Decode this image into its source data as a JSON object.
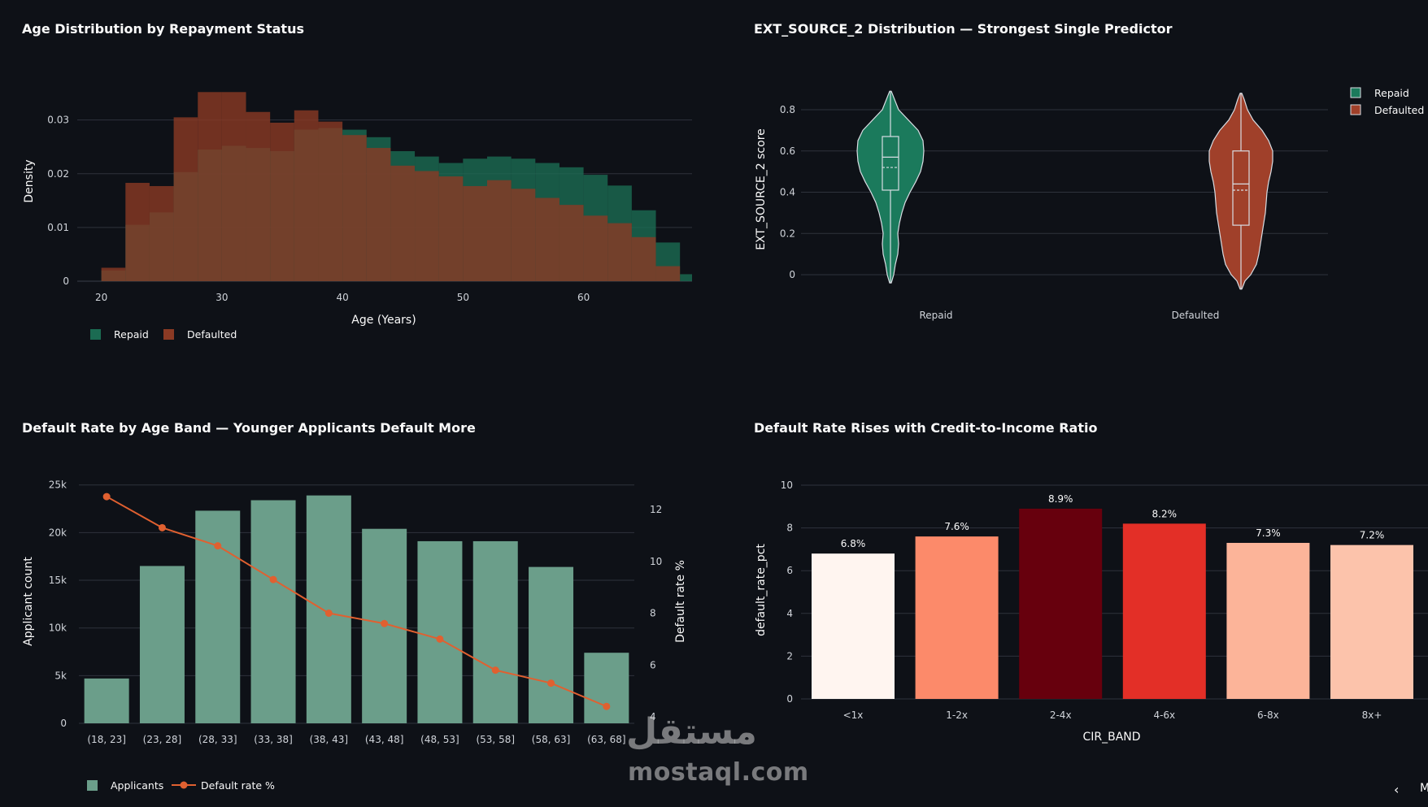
{
  "chart_data": [
    {
      "type": "histogram",
      "title": "Age Distribution by Repayment Status",
      "xlabel": "Age (Years)",
      "ylabel": "Density",
      "xlim": [
        18,
        69
      ],
      "ylim": [
        0,
        0.036
      ],
      "x_ticks": [
        20,
        30,
        40,
        50,
        60
      ],
      "x_tick_labels": [
        "20",
        "30",
        "40",
        "50",
        "60"
      ],
      "y_ticks": [
        0,
        0.01,
        0.02,
        0.03
      ],
      "y_tick_labels": [
        "0",
        "0.01",
        "0.02",
        "0.03"
      ],
      "legend_placement": "bottom-left",
      "bin_edges": [
        20,
        22,
        24,
        26,
        28,
        30,
        32,
        34,
        36,
        38,
        40,
        42,
        44,
        46,
        48,
        50,
        52,
        54,
        56,
        58,
        60,
        62,
        64,
        66,
        68,
        70
      ],
      "series": [
        {
          "name": "Repaid",
          "color": "#1b6b52",
          "values": [
            0.002,
            0.0105,
            0.0128,
            0.0203,
            0.0245,
            0.0252,
            0.0248,
            0.0242,
            0.0282,
            0.0285,
            0.0282,
            0.0268,
            0.0242,
            0.0232,
            0.022,
            0.0228,
            0.0232,
            0.0228,
            0.022,
            0.0212,
            0.0198,
            0.0178,
            0.0132,
            0.0072,
            0.0013
          ]
        },
        {
          "name": "Defaulted",
          "color": "#8b3a24",
          "values": [
            0.0025,
            0.0183,
            0.0177,
            0.0305,
            0.0352,
            0.0352,
            0.0315,
            0.0295,
            0.0318,
            0.0297,
            0.0272,
            0.0248,
            0.0215,
            0.0205,
            0.0195,
            0.0177,
            0.0188,
            0.0172,
            0.0155,
            0.0142,
            0.0122,
            0.0108,
            0.0082,
            0.0028,
            0.0
          ]
        }
      ]
    },
    {
      "type": "violin",
      "title": "EXT_SOURCE_2 Distribution — Strongest Single Predictor",
      "xlabel": "",
      "ylabel": "EXT_SOURCE_2 score",
      "ylim": [
        -0.08,
        0.92
      ],
      "y_ticks": [
        0,
        0.2,
        0.4,
        0.6,
        0.8
      ],
      "y_tick_labels": [
        "0",
        "0.2",
        "0.4",
        "0.6",
        "0.8"
      ],
      "legend_placement": "top-right",
      "categories": [
        "Repaid",
        "Defaulted"
      ],
      "series": [
        {
          "name": "Repaid",
          "color": "#1b7a5c",
          "min": -0.04,
          "q1": 0.41,
          "median": 0.57,
          "mean": 0.52,
          "q3": 0.67,
          "max": 0.89
        },
        {
          "name": "Defaulted",
          "color": "#a0402a",
          "min": -0.07,
          "q1": 0.24,
          "median": 0.44,
          "mean": 0.41,
          "q3": 0.6,
          "max": 0.88
        }
      ]
    },
    {
      "type": "bar",
      "title": "Default Rate by Age Band — Younger Applicants Default More",
      "ylabel": "Applicant count",
      "y2label": "Default rate %",
      "ylim": [
        0,
        26000
      ],
      "y2lim": [
        4,
        13.4
      ],
      "y_ticks": [
        0,
        5000,
        10000,
        15000,
        20000,
        25000
      ],
      "y_tick_labels": [
        "0",
        "5k",
        "10k",
        "15k",
        "20k",
        "25k"
      ],
      "y2_ticks": [
        4,
        6,
        8,
        10,
        12
      ],
      "y2_tick_labels": [
        "4",
        "6",
        "8",
        "10",
        "12"
      ],
      "legend_placement": "bottom-left",
      "categories": [
        "(18, 23]",
        "(23, 28]",
        "(28, 33]",
        "(33, 38]",
        "(38, 43]",
        "(43, 48]",
        "(48, 53]",
        "(53, 58]",
        "(58, 63]",
        "(63, 68]"
      ],
      "series": [
        {
          "name": "Applicants",
          "type": "bar",
          "color": "#6b9e8a",
          "values": [
            4700,
            16500,
            22300,
            23400,
            23900,
            20400,
            19100,
            19100,
            16400,
            7400
          ]
        },
        {
          "name": "Default rate %",
          "type": "line",
          "color": "#e06030",
          "values": [
            12.5,
            11.3,
            10.6,
            9.3,
            8.0,
            7.6,
            7.0,
            5.8,
            5.3,
            4.4
          ]
        }
      ]
    },
    {
      "type": "bar",
      "title": "Default Rate Rises with Credit-to-Income Ratio",
      "xlabel": "CIR_BAND",
      "ylabel": "default_rate_pct",
      "ylim": [
        0,
        10.7
      ],
      "y_ticks": [
        0,
        2,
        4,
        6,
        8,
        10
      ],
      "y_tick_labels": [
        "0",
        "2",
        "4",
        "6",
        "8",
        "10"
      ],
      "categories": [
        "<1x",
        "1-2x",
        "2-4x",
        "4-6x",
        "6-8x",
        "8x+"
      ],
      "values": [
        6.8,
        7.6,
        8.9,
        8.2,
        7.3,
        7.2
      ],
      "labels": [
        "6.8%",
        "7.6%",
        "8.9%",
        "8.2%",
        "7.3%",
        "7.2%"
      ],
      "colors": [
        "#fff5f0",
        "#fc8a6a",
        "#67000d",
        "#e32f27",
        "#fcb499",
        "#fcc3ab"
      ]
    }
  ],
  "watermark": {
    "arabic": "مستقل",
    "latin": "mostaql.com"
  },
  "nav": {
    "prev_icon": "‹",
    "next_label": "M"
  }
}
